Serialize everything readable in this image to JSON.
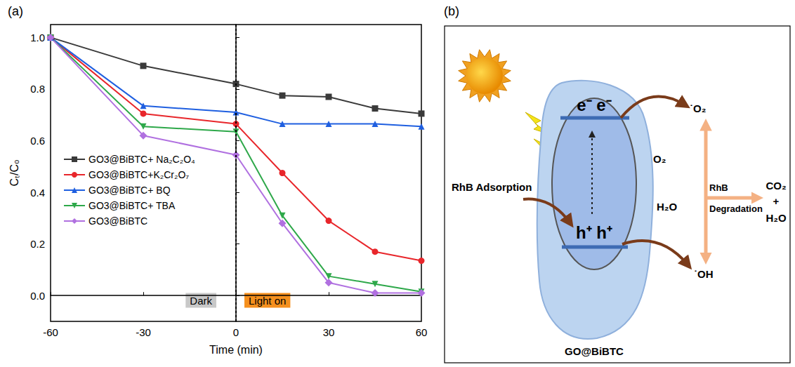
{
  "chart_data": {
    "type": "line",
    "title": "(a)",
    "x_label": "Time (min)",
    "y_label": "Cₜ/C₀",
    "x": [
      -60,
      -30,
      0,
      15,
      30,
      45,
      60
    ],
    "series": [
      {
        "name": "GO3@BiBTC+ Na₂C₂O₄",
        "color": "#3a3a3a",
        "marker": "square",
        "values": [
          1.0,
          0.89,
          0.82,
          0.775,
          0.77,
          0.725,
          0.705
        ]
      },
      {
        "name": "GO3@BiBTC+K₂Cr₂O₇",
        "color": "#e8262b",
        "marker": "circle",
        "values": [
          1.0,
          0.705,
          0.665,
          0.475,
          0.29,
          0.17,
          0.135
        ]
      },
      {
        "name": "GO3@BiBTC+ BQ",
        "color": "#1f5fe0",
        "marker": "triangle-up",
        "values": [
          1.0,
          0.735,
          0.71,
          0.665,
          0.665,
          0.665,
          0.655
        ]
      },
      {
        "name": "GO3@BiBTC+ TBA",
        "color": "#2ea84a",
        "marker": "triangle-down",
        "values": [
          1.0,
          0.655,
          0.635,
          0.31,
          0.075,
          0.045,
          0.015
        ]
      },
      {
        "name": "GO3@BiBTC",
        "color": "#b070e0",
        "marker": "diamond",
        "values": [
          1.0,
          0.62,
          0.545,
          0.28,
          0.05,
          0.01,
          0.01
        ]
      }
    ],
    "xlim": [
      -60,
      60
    ],
    "xticks": [
      -60,
      -30,
      0,
      30,
      60
    ],
    "ylim": [
      -0.1,
      1.05
    ],
    "yticks": [
      {
        "value": 0,
        "label": "0.0"
      },
      0.2,
      0.4,
      0.6,
      0.8,
      {
        "value": 1,
        "label": "1.0"
      }
    ],
    "vline": 0,
    "annotations": [
      {
        "text": "Dark",
        "color": "#c8c8c8"
      },
      {
        "text": "Light on",
        "color": "#f5901e"
      }
    ],
    "grid": false,
    "legend": "left"
  },
  "diagram": {
    "label": "(b)",
    "electrons": "e⁻ e⁻",
    "holes": "h⁺ h⁺",
    "adsorption": "RhB Adsorption",
    "oxygen": "O₂",
    "superoxide": "˙O₂",
    "water": "H₂O",
    "hydroxyl": "˙OH",
    "degradation": [
      "RhB",
      "Degradation"
    ],
    "products": [
      "CO₂",
      "+",
      "H₂O"
    ],
    "catalyst": "GO@BiBTC"
  }
}
